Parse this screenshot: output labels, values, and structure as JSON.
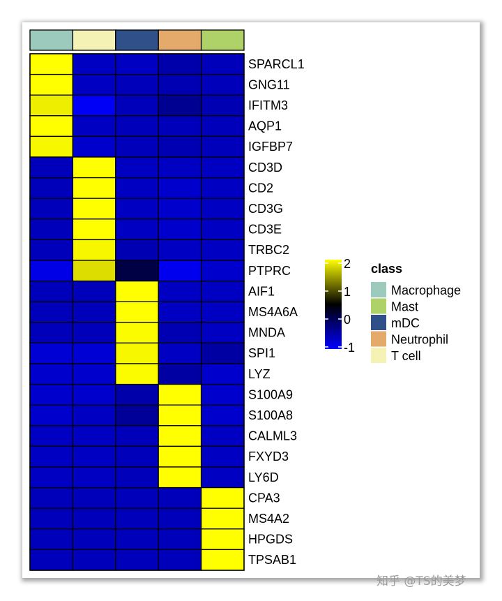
{
  "chart_data": {
    "type": "heatmap",
    "columns": [
      "Macrophage",
      "T cell",
      "mDC",
      "Neutrophil",
      "Mast"
    ],
    "rows": [
      "SPARCL1",
      "GNG11",
      "IFITM3",
      "AQP1",
      "IGFBP7",
      "CD3D",
      "CD2",
      "CD3G",
      "CD3E",
      "TRBC2",
      "PTPRC",
      "AIF1",
      "MS4A6A",
      "MNDA",
      "SPI1",
      "LYZ",
      "S100A9",
      "S100A8",
      "CALML3",
      "FXYD3",
      "LY6D",
      "CPA3",
      "MS4A2",
      "HPGDS",
      "TPSAB1"
    ],
    "values": [
      [
        2,
        -0.65,
        -0.65,
        -0.5,
        -0.6
      ],
      [
        2,
        -0.65,
        -0.6,
        -0.55,
        -0.6
      ],
      [
        1.9,
        -0.95,
        -0.6,
        -0.35,
        -0.55
      ],
      [
        2,
        -0.65,
        -0.6,
        -0.6,
        -0.6
      ],
      [
        1.95,
        -0.7,
        -0.6,
        -0.55,
        -0.6
      ],
      [
        -0.6,
        2,
        -0.65,
        -0.65,
        -0.65
      ],
      [
        -0.6,
        2,
        -0.65,
        -0.7,
        -0.65
      ],
      [
        -0.6,
        2,
        -0.65,
        -0.7,
        -0.65
      ],
      [
        -0.6,
        2,
        -0.65,
        -0.7,
        -0.65
      ],
      [
        -0.6,
        1.95,
        -0.55,
        -0.65,
        -0.65
      ],
      [
        -0.85,
        1.8,
        0.1,
        -0.9,
        -0.7
      ],
      [
        -0.6,
        -0.6,
        2,
        -0.65,
        -0.65
      ],
      [
        -0.6,
        -0.6,
        2,
        -0.65,
        -0.65
      ],
      [
        -0.6,
        -0.6,
        1.98,
        -0.55,
        -0.65
      ],
      [
        -0.75,
        -0.75,
        1.95,
        -0.65,
        -0.45
      ],
      [
        -0.7,
        -0.7,
        1.98,
        -0.45,
        -0.7
      ],
      [
        -0.7,
        -0.7,
        -0.5,
        2,
        -0.7
      ],
      [
        -0.7,
        -0.65,
        -0.4,
        2,
        -0.7
      ],
      [
        -0.65,
        -0.65,
        -0.6,
        2,
        -0.65
      ],
      [
        -0.65,
        -0.65,
        -0.6,
        2,
        -0.65
      ],
      [
        -0.65,
        -0.65,
        -0.6,
        2,
        -0.65
      ],
      [
        -0.6,
        -0.6,
        -0.6,
        -0.6,
        2
      ],
      [
        -0.6,
        -0.6,
        -0.6,
        -0.6,
        2
      ],
      [
        -0.6,
        -0.6,
        -0.6,
        -0.6,
        2
      ],
      [
        -0.6,
        -0.6,
        -0.6,
        -0.6,
        2
      ]
    ],
    "color_scale": {
      "range": [
        -1,
        2
      ],
      "colors": [
        "#0000ff",
        "#000000",
        "#ffff00"
      ],
      "ticks": [
        "2",
        "1",
        "0",
        "-1"
      ],
      "tick_values": [
        2,
        1,
        0,
        -1
      ]
    },
    "annotation": {
      "title": "class",
      "legend": [
        {
          "label": "Macrophage",
          "color": "#9ccbbe"
        },
        {
          "label": "Mast",
          "color": "#aed267"
        },
        {
          "label": "mDC",
          "color": "#2f5089"
        },
        {
          "label": "Neutrophil",
          "color": "#e3aa6c"
        },
        {
          "label": "T cell",
          "color": "#f5f2b5"
        }
      ]
    }
  },
  "watermark": "知乎 @TS的美梦"
}
